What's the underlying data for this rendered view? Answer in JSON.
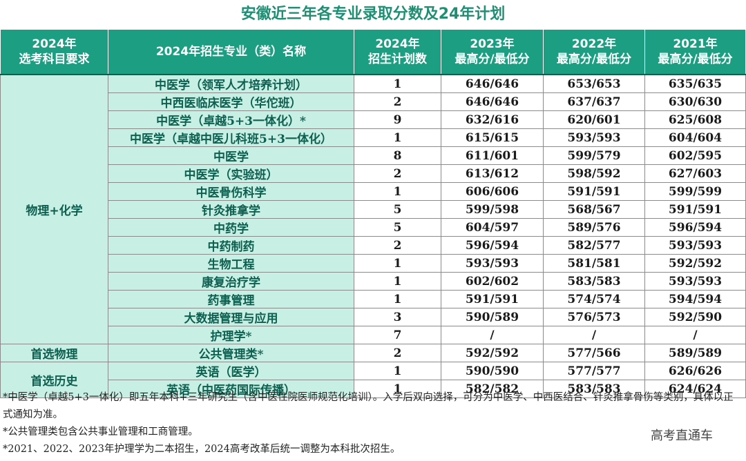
{
  "title": "安徽近三年各专业录取分数及24年计划",
  "headers": {
    "subject": [
      "2024年",
      "选考科目要求"
    ],
    "major": "2024年招生专业（类）名称",
    "plan": [
      "2024年",
      "招生计划数"
    ],
    "y2023": [
      "2023年",
      "最高分/最低分"
    ],
    "y2022": [
      "2022年",
      "最高分/最低分"
    ],
    "y2021": [
      "2021年",
      "最高分/最低分"
    ]
  },
  "groups": [
    {
      "subject": "物理+化学",
      "rows": [
        {
          "major": "中医学（领军人才培养计划）",
          "plan": "1",
          "y2023": "646/646",
          "y2022": "653/653",
          "y2021": "635/635"
        },
        {
          "major": "中西医临床医学（华佗班）",
          "plan": "2",
          "y2023": "646/646",
          "y2022": "637/637",
          "y2021": "630/630"
        },
        {
          "major": "中医学（卓越5+3一体化）*",
          "plan": "9",
          "y2023": "632/616",
          "y2022": "620/601",
          "y2021": "625/608"
        },
        {
          "major": "中医学（卓越中医儿科班5+3一体化）",
          "plan": "1",
          "y2023": "615/615",
          "y2022": "593/593",
          "y2021": "604/604"
        },
        {
          "major": "中医学",
          "plan": "8",
          "y2023": "611/601",
          "y2022": "599/579",
          "y2021": "602/595"
        },
        {
          "major": "中医学（实验班）",
          "plan": "2",
          "y2023": "613/612",
          "y2022": "598/592",
          "y2021": "627/603"
        },
        {
          "major": "中医骨伤科学",
          "plan": "1",
          "y2023": "606/606",
          "y2022": "591/591",
          "y2021": "599/599"
        },
        {
          "major": "针灸推拿学",
          "plan": "5",
          "y2023": "599/598",
          "y2022": "568/567",
          "y2021": "591/591"
        },
        {
          "major": "中药学",
          "plan": "5",
          "y2023": "604/597",
          "y2022": "589/576",
          "y2021": "596/594"
        },
        {
          "major": "中药制药",
          "plan": "2",
          "y2023": "596/594",
          "y2022": "582/577",
          "y2021": "593/593"
        },
        {
          "major": "生物工程",
          "plan": "1",
          "y2023": "593/593",
          "y2022": "581/581",
          "y2021": "592/592"
        },
        {
          "major": "康复治疗学",
          "plan": "1",
          "y2023": "602/602",
          "y2022": "583/583",
          "y2021": "593/593"
        },
        {
          "major": "药事管理",
          "plan": "1",
          "y2023": "591/591",
          "y2022": "574/574",
          "y2021": "594/594"
        },
        {
          "major": "大数据管理与应用",
          "plan": "3",
          "y2023": "590/589",
          "y2022": "576/573",
          "y2021": "592/590"
        },
        {
          "major": "护理学*",
          "plan": "7",
          "y2023": "/",
          "y2022": "/",
          "y2021": "/"
        }
      ]
    },
    {
      "subject": "首选物理",
      "rows": [
        {
          "major": "公共管理类*",
          "plan": "2",
          "y2023": "592/592",
          "y2022": "577/566",
          "y2021": "589/589"
        }
      ]
    },
    {
      "subject": "首选历史",
      "rows": [
        {
          "major": "英语（医学）",
          "plan": "1",
          "y2023": "590/590",
          "y2022": "577/577",
          "y2021": "626/626"
        },
        {
          "major": "英语（中医药国际传播）",
          "plan": "1",
          "y2023": "582/582",
          "y2022": "583/583",
          "y2021": "624/624"
        }
      ]
    }
  ],
  "notes": [
    "*中医学（卓越5+3一体化）即五年本科+三年研究生（含中医住院医师规范化培训）。入学后双向选择，可分为中医学、中西医结合、针灸推拿骨伤等类别，具体以正式通知为准。",
    "*公共管理类包含公共事业管理和工商管理。",
    "*2021、2022、2023年护理学为二本招生，2024高考改革后统一调整为本科批次招生。"
  ],
  "watermark": "高考直通车",
  "colors": {
    "header_bg": "#1b9e81",
    "title": "#1e8f73",
    "highlight": "#c8efe4"
  }
}
